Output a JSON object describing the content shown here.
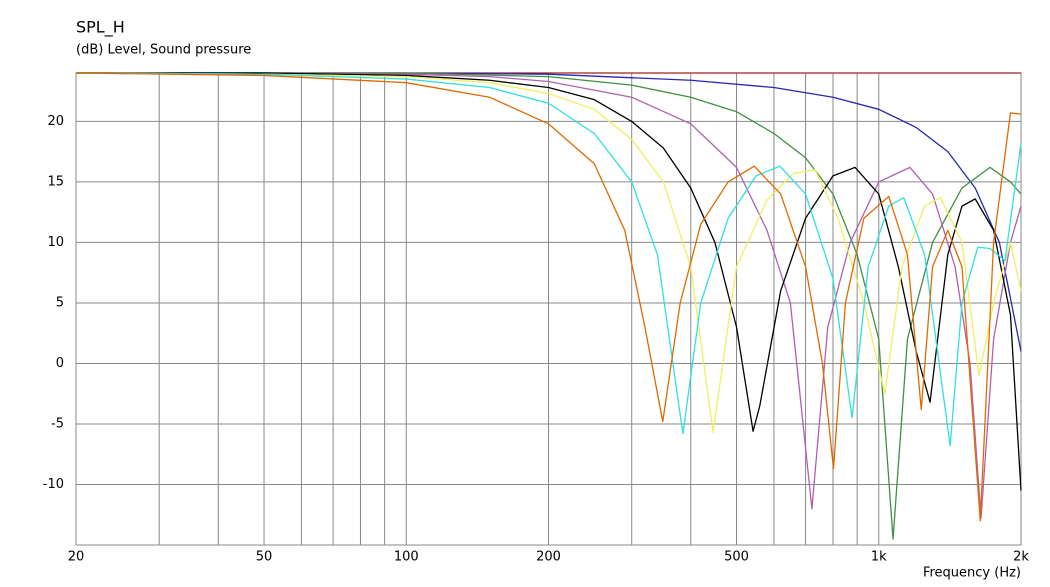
{
  "chart_data": {
    "type": "line",
    "title": "SPL_H",
    "subtitle": "(dB)  Level, Sound pressure",
    "x_label": "Frequency  (Hz)",
    "xscale": "log",
    "xlim": [
      20,
      2000
    ],
    "ylim": [
      -15,
      24
    ],
    "grid": true,
    "xticks": [
      20,
      50,
      100,
      200,
      500,
      {
        "value": 1000,
        "label": "1k"
      },
      {
        "value": 2000,
        "label": "2k"
      }
    ],
    "xminor_ticks": [
      30,
      40,
      60,
      70,
      80,
      90,
      300,
      400,
      600,
      700,
      800,
      900
    ],
    "yticks": [
      20,
      15,
      10,
      5,
      0,
      -5,
      -10
    ],
    "series": [
      {
        "color": "#a02020",
        "x": [
          20,
          2000
        ],
        "values": [
          24,
          24
        ]
      },
      {
        "color": "#2828b0",
        "x": [
          20,
          100,
          200,
          400,
          600,
          800,
          1000,
          1200,
          1400,
          1600,
          1800,
          2000
        ],
        "values": [
          24,
          24,
          23.9,
          23.4,
          22.8,
          22,
          21,
          19.5,
          17.5,
          14.5,
          10,
          1
        ]
      },
      {
        "color": "#409040",
        "x": [
          20,
          50,
          100,
          200,
          300,
          400,
          500,
          600,
          700,
          800,
          900,
          1000,
          1072,
          1150,
          1300,
          1500,
          1720,
          1900,
          2000
        ],
        "values": [
          24,
          24,
          24,
          23.7,
          23,
          22,
          20.8,
          19,
          17,
          14,
          9,
          2,
          -14.5,
          2,
          10,
          14.5,
          16.2,
          15,
          14
        ]
      },
      {
        "color": "#b060b0",
        "x": [
          20,
          50,
          100,
          150,
          200,
          300,
          400,
          500,
          580,
          650,
          722,
          780,
          870,
          1000,
          1164,
          1300,
          1450,
          1560,
          1646,
          1750,
          1900,
          2000
        ],
        "values": [
          24,
          24,
          23.9,
          23.7,
          23.3,
          22,
          19.8,
          16.2,
          11,
          5,
          -12,
          3,
          10,
          15,
          16.2,
          14,
          8,
          0,
          -12.8,
          2,
          10,
          13
        ]
      },
      {
        "color": "#000000",
        "x": [
          20,
          50,
          100,
          150,
          200,
          250,
          300,
          350,
          400,
          450,
          500,
          542,
          560,
          620,
          700,
          800,
          891,
          1000,
          1100,
          1200,
          1284,
          1400,
          1500,
          1600,
          1750,
          1900,
          2000
        ],
        "values": [
          24,
          24,
          23.8,
          23.4,
          22.8,
          21.8,
          20,
          17.8,
          14.5,
          10,
          3,
          -5.6,
          -3.5,
          6,
          12,
          15.5,
          16.2,
          14,
          8,
          1,
          -3.2,
          9,
          13,
          13.6,
          11,
          4,
          -10.5
        ]
      },
      {
        "color": "#f0f060",
        "x": [
          20,
          50,
          100,
          150,
          200,
          250,
          300,
          350,
          400,
          446,
          500,
          580,
          660,
          733,
          820,
          930,
          1030,
          1120,
          1250,
          1350,
          1500,
          1630,
          1750,
          1900,
          2000
        ],
        "values": [
          24,
          23.9,
          23.7,
          23.2,
          22.3,
          21,
          18.5,
          15,
          8,
          -5.7,
          8,
          13.5,
          15.7,
          16,
          12,
          5,
          -2.5,
          8,
          13,
          13.7,
          10,
          -1,
          5,
          10,
          6
        ]
      },
      {
        "color": "#30e0e0",
        "x": [
          20,
          50,
          100,
          150,
          200,
          250,
          300,
          340,
          385,
          420,
          480,
          550,
          618,
          700,
          800,
          878,
          950,
          1050,
          1130,
          1250,
          1416,
          1500,
          1620,
          1720,
          1850,
          2000
        ],
        "values": [
          24,
          23.9,
          23.5,
          22.8,
          21.5,
          19,
          15,
          9,
          -5.8,
          5,
          12,
          15.5,
          16.3,
          14,
          7,
          -4.5,
          8,
          13,
          13.7,
          9,
          -6.8,
          5,
          9.6,
          9.5,
          8.5,
          18.2
        ]
      },
      {
        "color": "#e06a00",
        "x": [
          20,
          50,
          100,
          150,
          200,
          250,
          290,
          320,
          349,
          380,
          420,
          480,
          545,
          620,
          700,
          760,
          802,
          850,
          930,
          1050,
          1150,
          1230,
          1300,
          1400,
          1500,
          1640,
          1750,
          1900,
          2000
        ],
        "values": [
          24,
          23.8,
          23.2,
          22,
          19.8,
          16.5,
          11,
          3,
          -4.8,
          5,
          11.5,
          15,
          16.3,
          14,
          8,
          0,
          -8.7,
          5,
          12,
          13.8,
          9,
          -3.8,
          8,
          11,
          8,
          -13,
          10,
          20.7,
          20.6
        ]
      }
    ]
  }
}
